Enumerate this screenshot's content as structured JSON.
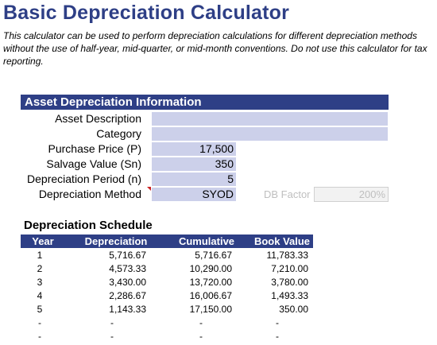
{
  "title": "Basic Depreciation Calculator",
  "description": "This calculator can be used to perform depreciation calculations for different depreciation methods without the use of half-year, mid-quarter, or mid-month conventions. Do not use this calculator for tax reporting.",
  "asset_section": {
    "header": "Asset Depreciation Information",
    "asset_description_label": "Asset Description",
    "asset_description_value": "",
    "category_label": "Category",
    "category_value": "",
    "purchase_price_label": "Purchase Price (P)",
    "purchase_price_value": "17,500",
    "salvage_value_label": "Salvage Value (Sn)",
    "salvage_value_value": "350",
    "period_label": "Depreciation Period (n)",
    "period_value": "5",
    "method_label": "Depreciation Method",
    "method_value": "SYOD",
    "db_factor_label": "DB Factor",
    "db_factor_value": "200%"
  },
  "schedule": {
    "title": "Depreciation Schedule",
    "columns": [
      "Year",
      "Depreciation",
      "Cumulative",
      "Book Value"
    ],
    "rows": [
      [
        "1",
        "5,716.67",
        "5,716.67",
        "11,783.33"
      ],
      [
        "2",
        "4,573.33",
        "10,290.00",
        "7,210.00"
      ],
      [
        "3",
        "3,430.00",
        "13,720.00",
        "3,780.00"
      ],
      [
        "4",
        "2,286.67",
        "16,006.67",
        "1,493.33"
      ],
      [
        "5",
        "1,143.33",
        "17,150.00",
        "350.00"
      ],
      [
        "-",
        "-",
        "-",
        "-"
      ],
      [
        "-",
        "-",
        "-",
        "-"
      ]
    ]
  },
  "colors": {
    "accent": "#2e3f86",
    "input_fill": "#ccd0ea"
  }
}
